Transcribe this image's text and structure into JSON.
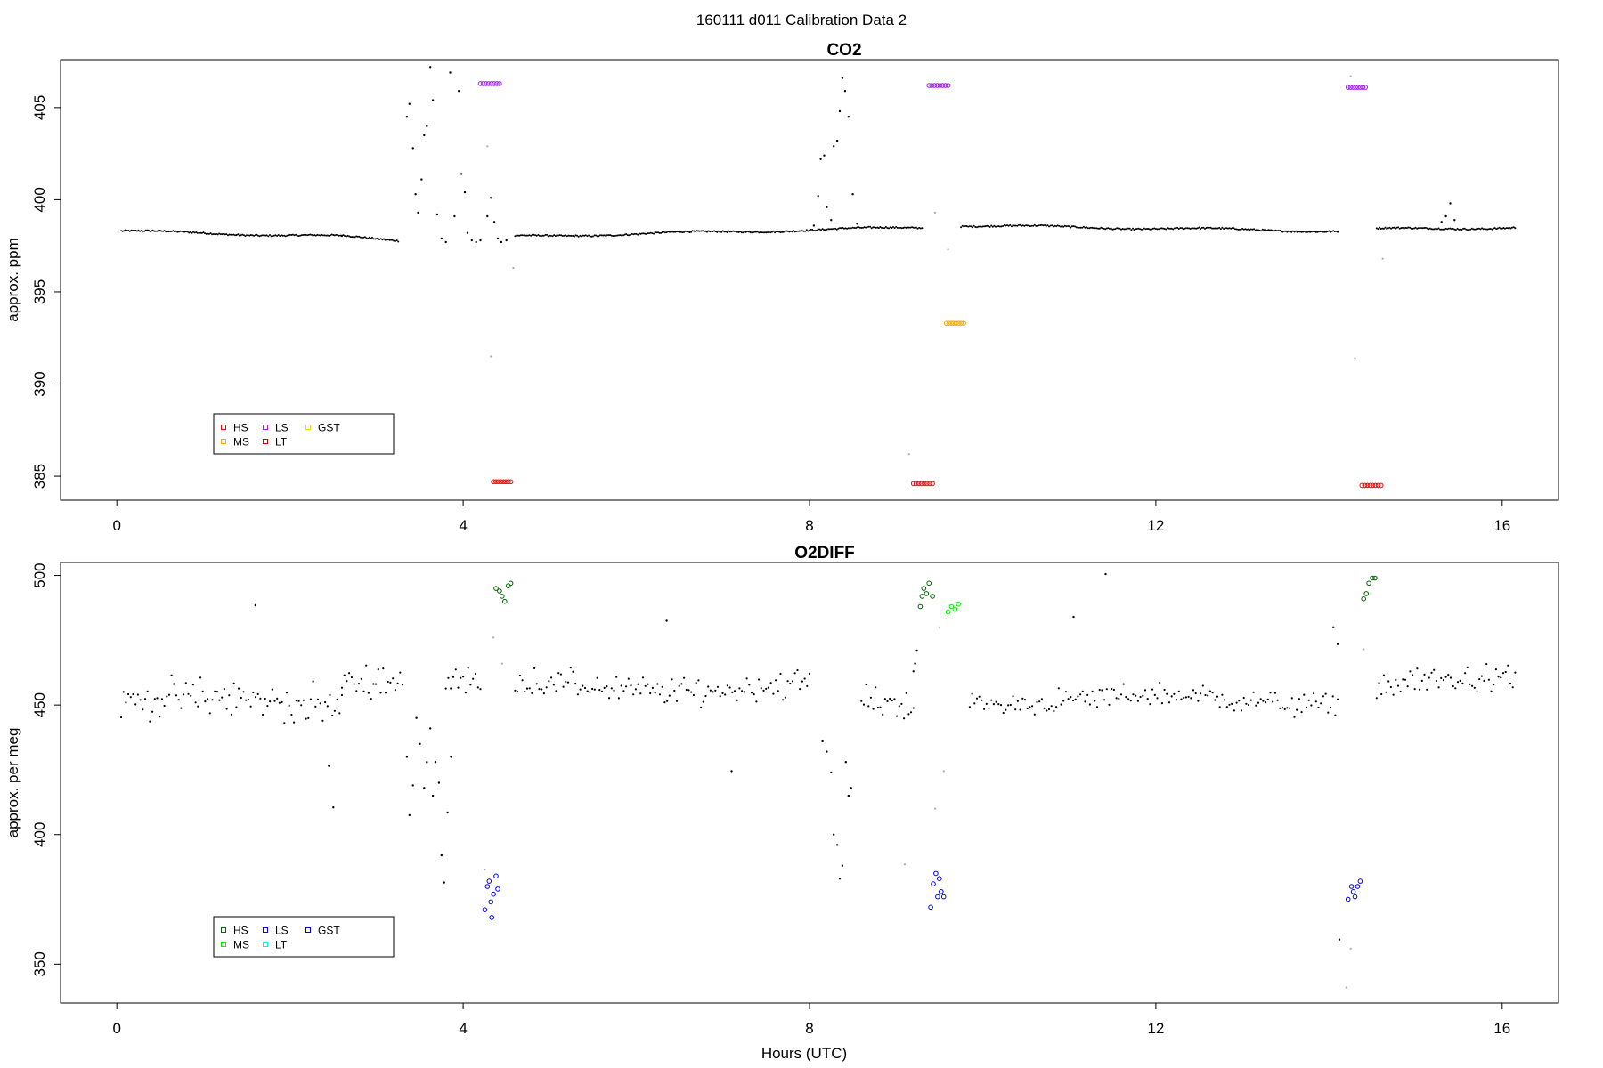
{
  "figure": {
    "title": "160111   d011   Calibration Data 2"
  },
  "chart_data": [
    {
      "type": "scatter",
      "title": "CO2",
      "xlabel": "",
      "ylabel": "approx. ppm",
      "xlim": [
        -0.65,
        16.65
      ],
      "ylim": [
        383.7,
        407.6
      ],
      "xticks": [
        0,
        4,
        8,
        12,
        16
      ],
      "yticks": [
        385,
        390,
        395,
        400,
        405
      ],
      "grid": false,
      "legend": {
        "position": "bottom-left",
        "entries": [
          {
            "label": "HS",
            "color": "#ff0000"
          },
          {
            "label": "MS",
            "color": "#ffa500"
          },
          {
            "label": "LS",
            "color": "#a020f0"
          },
          {
            "label": "LT",
            "color": "#cc0000"
          },
          {
            "label": "GST",
            "color": "#ffd700"
          }
        ]
      },
      "baseline_segments": [
        {
          "from": 0.05,
          "to": 2.6,
          "y0": 398.3,
          "y1": 398.0,
          "color": "#000000"
        },
        {
          "from": 2.6,
          "to": 3.25,
          "y0": 398.0,
          "y1": 397.8,
          "color": "#000000"
        },
        {
          "from": 4.6,
          "to": 9.3,
          "y0": 398.0,
          "y1": 398.5,
          "color": "#000000"
        },
        {
          "from": 9.75,
          "to": 14.1,
          "y0": 398.6,
          "y1": 398.3,
          "color": "#000000"
        },
        {
          "from": 14.55,
          "to": 16.15,
          "y0": 398.4,
          "y1": 398.5,
          "color": "#000000"
        }
      ],
      "scatter_points": [
        [
          3.35,
          404.5
        ],
        [
          3.38,
          405.2
        ],
        [
          3.42,
          402.8
        ],
        [
          3.45,
          400.3
        ],
        [
          3.48,
          399.3
        ],
        [
          3.52,
          401.1
        ],
        [
          3.55,
          403.5
        ],
        [
          3.58,
          404.0
        ],
        [
          3.62,
          407.2
        ],
        [
          3.65,
          405.4
        ],
        [
          3.7,
          399.2
        ],
        [
          3.75,
          397.9
        ],
        [
          3.8,
          397.7
        ],
        [
          3.85,
          406.9
        ],
        [
          3.9,
          399.1
        ],
        [
          3.95,
          405.9
        ],
        [
          3.98,
          401.4
        ],
        [
          4.02,
          400.4
        ],
        [
          4.05,
          398.2
        ],
        [
          4.1,
          397.8
        ],
        [
          4.15,
          397.7
        ],
        [
          4.2,
          397.8
        ],
        [
          4.28,
          399.1
        ],
        [
          4.32,
          400.1
        ],
        [
          4.36,
          398.8
        ],
        [
          4.4,
          397.9
        ],
        [
          4.44,
          397.7
        ],
        [
          4.5,
          397.8
        ],
        [
          8.05,
          398.6
        ],
        [
          8.1,
          400.2
        ],
        [
          8.13,
          402.2
        ],
        [
          8.17,
          402.4
        ],
        [
          8.2,
          399.6
        ],
        [
          8.25,
          398.9
        ],
        [
          8.28,
          402.9
        ],
        [
          8.32,
          403.2
        ],
        [
          8.35,
          404.8
        ],
        [
          8.38,
          406.6
        ],
        [
          8.41,
          405.9
        ],
        [
          8.45,
          404.5
        ],
        [
          8.5,
          400.3
        ],
        [
          8.55,
          398.7
        ],
        [
          15.3,
          398.8
        ],
        [
          15.35,
          399.1
        ],
        [
          15.4,
          399.8
        ],
        [
          15.45,
          398.9
        ]
      ],
      "gray_points": [
        [
          4.28,
          402.9
        ],
        [
          4.32,
          391.5
        ],
        [
          4.58,
          396.3
        ],
        [
          9.45,
          399.3
        ],
        [
          9.6,
          397.3
        ],
        [
          9.15,
          386.2
        ],
        [
          14.25,
          406.7
        ],
        [
          14.3,
          391.4
        ],
        [
          14.62,
          396.8
        ]
      ],
      "calibration_groups": [
        {
          "label": "LS",
          "color": "#a020f0",
          "x_from": 4.2,
          "x_to": 4.42,
          "y": 406.3
        },
        {
          "label": "HS",
          "color": "#ff0000",
          "x_from": 4.35,
          "x_to": 4.55,
          "y": 384.7
        },
        {
          "label": "LS",
          "color": "#a020f0",
          "x_from": 9.38,
          "x_to": 9.6,
          "y": 406.2
        },
        {
          "label": "HS",
          "color": "#ff0000",
          "x_from": 9.2,
          "x_to": 9.42,
          "y": 384.6
        },
        {
          "label": "MS",
          "color": "#ffa500",
          "x_from": 9.58,
          "x_to": 9.78,
          "y": 393.3
        },
        {
          "label": "LS",
          "color": "#a020f0",
          "x_from": 14.22,
          "x_to": 14.42,
          "y": 406.1
        },
        {
          "label": "HS",
          "color": "#ff0000",
          "x_from": 14.38,
          "x_to": 14.6,
          "y": 384.5
        }
      ]
    },
    {
      "type": "scatter",
      "title": "O2DIFF",
      "xlabel": "Hours (UTC)",
      "ylabel": "approx. per meg",
      "xlim": [
        -0.65,
        16.65
      ],
      "ylim": [
        335,
        505
      ],
      "xticks": [
        0,
        4,
        8,
        12,
        16
      ],
      "yticks": [
        350,
        400,
        450,
        500
      ],
      "grid": false,
      "legend": {
        "position": "bottom-left",
        "entries": [
          {
            "label": "HS",
            "color": "#006400"
          },
          {
            "label": "MS",
            "color": "#00ee00"
          },
          {
            "label": "LS",
            "color": "#0000ff"
          },
          {
            "label": "LT",
            "color": "#00eeee"
          },
          {
            "label": "GST",
            "color": "#0000cd"
          }
        ]
      },
      "noise_segments": [
        {
          "from": 0.05,
          "to": 2.6,
          "center": 451,
          "spread": 8,
          "color": "#000000"
        },
        {
          "from": 2.6,
          "to": 3.3,
          "center": 461,
          "spread": 6,
          "color": "#000000"
        },
        {
          "from": 3.8,
          "to": 4.2,
          "center": 458,
          "spread": 6,
          "color": "#000000"
        },
        {
          "from": 4.6,
          "to": 8.0,
          "center": 457,
          "spread": 6,
          "color": "#000000"
        },
        {
          "from": 8.6,
          "to": 9.2,
          "center": 450,
          "spread": 6,
          "color": "#000000"
        },
        {
          "from": 9.85,
          "to": 14.1,
          "center": 452,
          "spread": 5,
          "color": "#000000"
        },
        {
          "from": 14.55,
          "to": 16.15,
          "center": 458,
          "spread": 6,
          "color": "#000000"
        }
      ],
      "scatter_points": [
        [
          1.6,
          488.5
        ],
        [
          2.45,
          426.5
        ],
        [
          2.5,
          410.5
        ],
        [
          3.35,
          430
        ],
        [
          3.38,
          407.5
        ],
        [
          3.42,
          419
        ],
        [
          3.46,
          445
        ],
        [
          3.5,
          435
        ],
        [
          3.55,
          418
        ],
        [
          3.58,
          428
        ],
        [
          3.62,
          441
        ],
        [
          3.65,
          415
        ],
        [
          3.68,
          428
        ],
        [
          3.72,
          420
        ],
        [
          3.75,
          392
        ],
        [
          3.78,
          381.5
        ],
        [
          3.82,
          408.5
        ],
        [
          3.86,
          430
        ],
        [
          8.15,
          436
        ],
        [
          8.2,
          432
        ],
        [
          8.25,
          424
        ],
        [
          8.28,
          400
        ],
        [
          8.32,
          396
        ],
        [
          8.35,
          383
        ],
        [
          8.38,
          388
        ],
        [
          8.42,
          428
        ],
        [
          8.45,
          415
        ],
        [
          8.48,
          418
        ],
        [
          6.35,
          482.5
        ],
        [
          7.1,
          424.5
        ],
        [
          11.05,
          484
        ],
        [
          11.42,
          500.5
        ],
        [
          14.05,
          480
        ],
        [
          14.1,
          473.5
        ],
        [
          14.12,
          359.5
        ],
        [
          9.2,
          463
        ],
        [
          9.22,
          466
        ],
        [
          9.24,
          471
        ]
      ],
      "gray_points": [
        [
          4.25,
          386.5
        ],
        [
          4.35,
          476
        ],
        [
          4.45,
          466
        ],
        [
          9.5,
          480
        ],
        [
          9.45,
          410
        ],
        [
          9.55,
          424.5
        ],
        [
          9.1,
          388.5
        ],
        [
          14.2,
          341
        ],
        [
          14.25,
          356
        ],
        [
          14.4,
          471.5
        ]
      ],
      "calibration_groups": [
        {
          "label": "HS",
          "color": "#006400",
          "points": [
            [
              4.38,
              495
            ],
            [
              4.42,
              494
            ],
            [
              4.45,
              492
            ],
            [
              4.48,
              490
            ],
            [
              4.52,
              496
            ],
            [
              4.55,
              497
            ]
          ]
        },
        {
          "label": "LS",
          "color": "#0000ff",
          "points": [
            [
              4.25,
              371
            ],
            [
              4.28,
              380
            ],
            [
              4.3,
              382
            ],
            [
              4.33,
              368
            ],
            [
              4.35,
              377
            ],
            [
              4.38,
              384
            ],
            [
              4.4,
              379
            ],
            [
              4.32,
              374
            ]
          ]
        },
        {
          "label": "HS",
          "color": "#006400",
          "points": [
            [
              9.28,
              488
            ],
            [
              9.32,
              495
            ],
            [
              9.35,
              493
            ],
            [
              9.38,
              497
            ],
            [
              9.42,
              492
            ],
            [
              9.3,
              492
            ]
          ]
        },
        {
          "label": "MS",
          "color": "#00ee00",
          "points": [
            [
              9.6,
              486
            ],
            [
              9.64,
              488
            ],
            [
              9.68,
              487
            ],
            [
              9.72,
              489
            ]
          ]
        },
        {
          "label": "LS",
          "color": "#0000ff",
          "points": [
            [
              9.4,
              372
            ],
            [
              9.43,
              381
            ],
            [
              9.46,
              385
            ],
            [
              9.48,
              376
            ],
            [
              9.5,
              383
            ],
            [
              9.52,
              378
            ],
            [
              9.55,
              376
            ]
          ]
        },
        {
          "label": "HS",
          "color": "#006400",
          "points": [
            [
              14.4,
              491
            ],
            [
              14.43,
              493
            ],
            [
              14.46,
              497
            ],
            [
              14.5,
              499
            ],
            [
              14.53,
              499
            ]
          ]
        },
        {
          "label": "LS",
          "color": "#0000ff",
          "points": [
            [
              14.22,
              375
            ],
            [
              14.26,
              380
            ],
            [
              14.3,
              376
            ],
            [
              14.33,
              380
            ],
            [
              14.36,
              382
            ],
            [
              14.28,
              378
            ]
          ]
        }
      ]
    }
  ]
}
